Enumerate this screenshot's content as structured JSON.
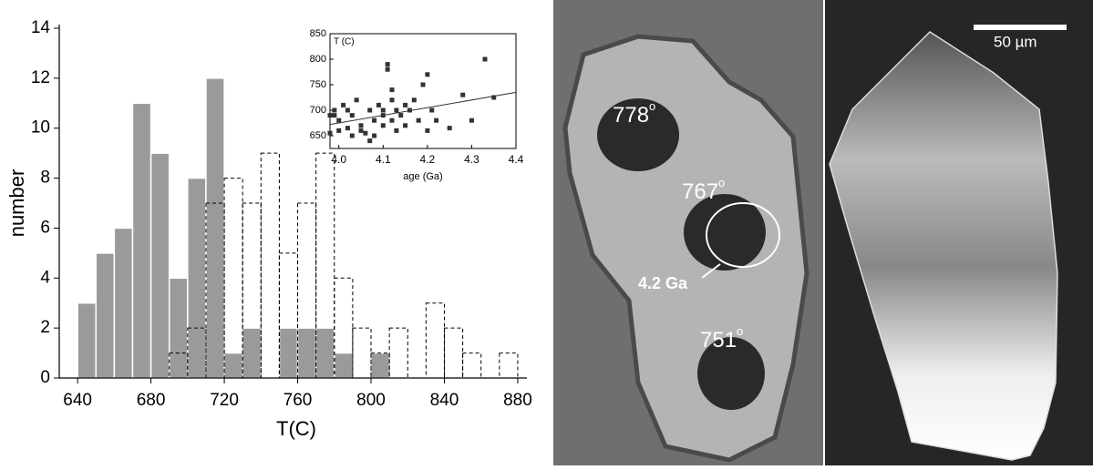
{
  "chart_data": [
    {
      "type": "histogram",
      "xlabel": "T(C)",
      "ylabel": "number",
      "bins": [
        640,
        650,
        660,
        670,
        680,
        690,
        700,
        710,
        720,
        730,
        740,
        750,
        760,
        770,
        780,
        790,
        800,
        810,
        820,
        830,
        840,
        850,
        860,
        870,
        880
      ],
      "series": [
        {
          "color": "#9a9a9a",
          "style": "solid",
          "values": [
            3,
            5,
            6,
            11,
            9,
            4,
            8,
            12,
            1,
            2,
            0,
            2,
            2,
            2,
            1,
            0,
            1,
            0,
            0,
            0,
            0,
            0,
            0,
            0
          ]
        },
        {
          "color": "#000000",
          "style": "dashed",
          "values": [
            0,
            0,
            0,
            0,
            0,
            1,
            2,
            7,
            8,
            7,
            9,
            5,
            7,
            9,
            4,
            2,
            1,
            2,
            0,
            3,
            2,
            1,
            0,
            1
          ]
        }
      ],
      "xlim": [
        630,
        885
      ],
      "xticks": [
        640,
        680,
        720,
        760,
        800,
        840,
        880
      ],
      "ylim": [
        0,
        14
      ],
      "yticks": [
        0,
        2,
        4,
        6,
        8,
        10,
        12,
        14
      ]
    },
    {
      "type": "scatter",
      "ylabel": "T (C)",
      "xlabel": "age (Ga)",
      "color": "#333333",
      "x": [
        3.99,
        3.98,
        3.99,
        4.0,
        4.0,
        4.01,
        4.02,
        4.03,
        4.03,
        4.04,
        4.05,
        4.05,
        4.06,
        4.07,
        4.08,
        4.08,
        4.09,
        4.1,
        4.1,
        4.1,
        4.11,
        4.11,
        4.12,
        4.12,
        4.13,
        4.13,
        4.14,
        4.15,
        4.15,
        4.16,
        4.17,
        4.18,
        4.19,
        4.2,
        4.2,
        4.21,
        4.22,
        4.25,
        4.28,
        4.3,
        4.33,
        4.35,
        3.98,
        4.02,
        4.07,
        4.12
      ],
      "y": [
        690,
        655,
        700,
        680,
        660,
        710,
        700,
        650,
        690,
        720,
        660,
        670,
        655,
        700,
        650,
        680,
        710,
        690,
        670,
        700,
        780,
        790,
        720,
        680,
        700,
        660,
        690,
        710,
        670,
        700,
        720,
        680,
        750,
        770,
        660,
        700,
        680,
        665,
        730,
        680,
        800,
        725,
        690,
        665,
        640,
        740
      ],
      "fit": {
        "x": [
          3.98,
          4.4
        ],
        "y": [
          672,
          735
        ]
      },
      "xlim": [
        3.98,
        4.4
      ],
      "xticks": [
        {
          "value": 4,
          "label": "4.0"
        },
        4.1,
        4.2,
        4.3,
        {
          "value": 4.4,
          "label": "4.4"
        }
      ],
      "ylim": [
        625,
        850
      ],
      "yticks": [
        650,
        700,
        750,
        800,
        850
      ]
    }
  ],
  "photo": {
    "spots": [
      {
        "temp": "778",
        "sup": "o"
      },
      {
        "temp": "767",
        "sup": "o"
      },
      {
        "temp": "751",
        "sup": "o"
      }
    ],
    "age": "4.2 Ga",
    "scale": "50 µm"
  }
}
